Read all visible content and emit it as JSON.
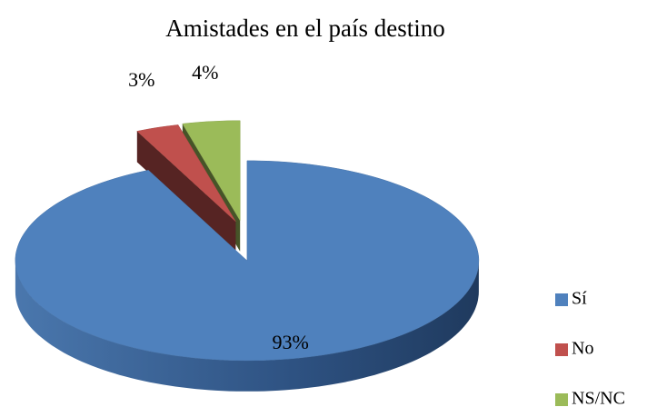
{
  "chart_data": {
    "type": "pie",
    "title": "Amistades en el país destino",
    "categories": [
      "Sí",
      "No",
      "NS/NC"
    ],
    "values": [
      93,
      3,
      4
    ],
    "value_labels": [
      "93%",
      "3%",
      "4%"
    ],
    "colors": [
      "#4f81bd",
      "#c0504d",
      "#9bbb59"
    ],
    "legend": "right"
  }
}
